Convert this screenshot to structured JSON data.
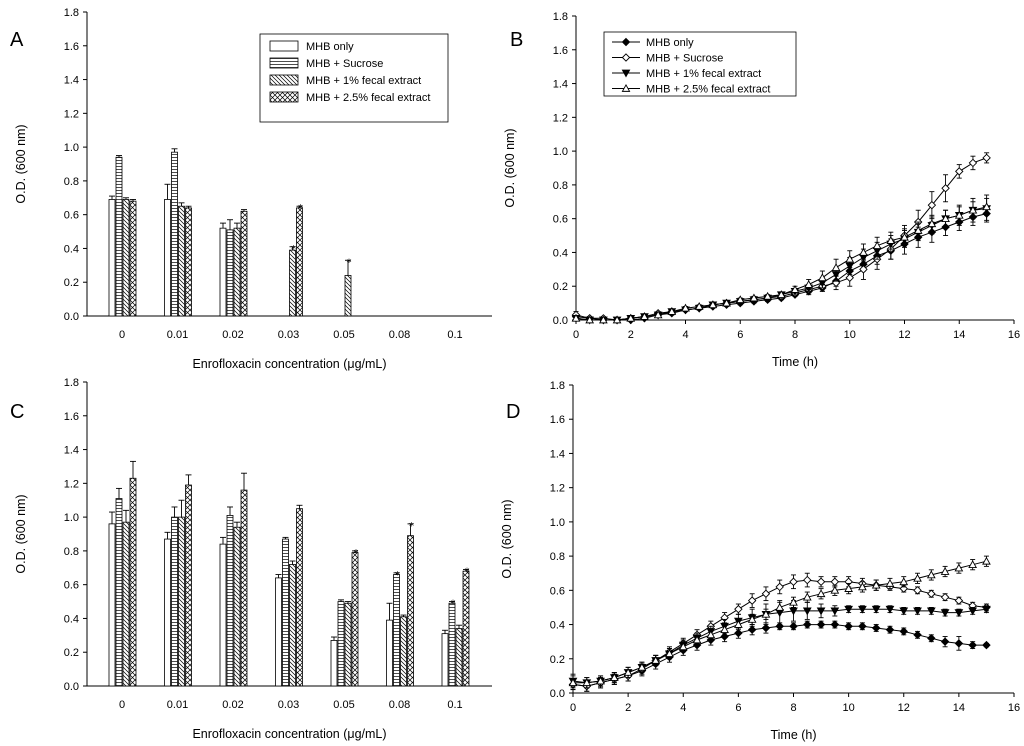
{
  "chart_data": [
    {
      "panel": "A",
      "type": "bar",
      "ylabel": "O.D. (600 nm)",
      "xlabel": "Enrofloxacin concentration (μg/mL)",
      "ylim": [
        0,
        1.8
      ],
      "yticks": [
        "0.0",
        "0.2",
        "0.4",
        "0.6",
        "0.8",
        "1.0",
        "1.2",
        "1.4",
        "1.6",
        "1.8"
      ],
      "categories": [
        "0",
        "0.01",
        "0.02",
        "0.03",
        "0.05",
        "0.08",
        "0.1"
      ],
      "legend_position": "top-right",
      "series": [
        {
          "name": "MHB only",
          "pattern": "open",
          "values": [
            0.69,
            0.69,
            0.52,
            null,
            null,
            null,
            null
          ],
          "errors": [
            0.02,
            0.09,
            0.03,
            null,
            null,
            null,
            null
          ]
        },
        {
          "name": "MHB + Sucrose",
          "pattern": "hlines",
          "values": [
            0.94,
            0.97,
            0.51,
            null,
            null,
            null,
            null
          ],
          "errors": [
            0.01,
            0.02,
            0.06,
            null,
            null,
            null,
            null
          ]
        },
        {
          "name": "MHB + 1% fecal extract",
          "pattern": "diag",
          "values": [
            0.69,
            0.65,
            0.52,
            0.39,
            0.24,
            null,
            null
          ],
          "errors": [
            0.01,
            0.02,
            0.03,
            0.02,
            0.09,
            null,
            null
          ]
        },
        {
          "name": "MHB + 2.5% fecal extract",
          "pattern": "cross",
          "values": [
            0.68,
            0.64,
            0.62,
            0.64,
            null,
            null,
            null
          ],
          "errors": [
            0.01,
            0.01,
            0.01,
            0.01,
            null,
            null,
            null
          ]
        }
      ],
      "annotations": [
        {
          "text": "*",
          "category": "0.03",
          "series": 2
        },
        {
          "text": "*",
          "category": "0.03",
          "series": 3
        },
        {
          "text": "*",
          "category": "0.05",
          "series": 2
        }
      ]
    },
    {
      "panel": "B",
      "type": "line",
      "ylabel": "O.D. (600 nm)",
      "xlabel": "Time (h)",
      "xlim": [
        0,
        16
      ],
      "ylim": [
        0,
        1.8
      ],
      "xticks": [
        "0",
        "2",
        "4",
        "6",
        "8",
        "10",
        "12",
        "14",
        "16"
      ],
      "yticks": [
        "0.0",
        "0.2",
        "0.4",
        "0.6",
        "0.8",
        "1.0",
        "1.2",
        "1.4",
        "1.6",
        "1.8"
      ],
      "legend_position": "top-left",
      "x": [
        0,
        0.5,
        1,
        1.5,
        2,
        2.5,
        3,
        3.5,
        4,
        4.5,
        5,
        5.5,
        6,
        6.5,
        7,
        7.5,
        8,
        8.5,
        9,
        9.5,
        10,
        10.5,
        11,
        11.5,
        12,
        12.5,
        13,
        13.5,
        14,
        14.5,
        15
      ],
      "series": [
        {
          "name": "MHB only",
          "marker": "filled-diamond",
          "values": [
            0.02,
            0.01,
            0.0,
            0.0,
            0.0,
            0.01,
            0.03,
            0.04,
            0.06,
            0.07,
            0.08,
            0.09,
            0.1,
            0.11,
            0.12,
            0.13,
            0.15,
            0.17,
            0.19,
            0.23,
            0.29,
            0.33,
            0.38,
            0.41,
            0.45,
            0.49,
            0.52,
            0.55,
            0.58,
            0.61,
            0.63
          ],
          "errors": [
            0.02,
            0.01,
            0.01,
            0.01,
            0.01,
            0.01,
            0.01,
            0.01,
            0.01,
            0.01,
            0.01,
            0.01,
            0.01,
            0.01,
            0.01,
            0.01,
            0.01,
            0.02,
            0.02,
            0.03,
            0.04,
            0.04,
            0.05,
            0.05,
            0.06,
            0.06,
            0.06,
            0.05,
            0.05,
            0.05,
            0.04
          ]
        },
        {
          "name": "MHB + Sucrose",
          "marker": "open-diamond",
          "values": [
            0.03,
            0.01,
            0.01,
            0.0,
            0.01,
            0.02,
            0.04,
            0.05,
            0.06,
            0.07,
            0.09,
            0.1,
            0.11,
            0.12,
            0.13,
            0.14,
            0.16,
            0.18,
            0.2,
            0.22,
            0.25,
            0.3,
            0.36,
            0.42,
            0.5,
            0.58,
            0.68,
            0.78,
            0.88,
            0.93,
            0.96
          ],
          "errors": [
            0.02,
            0.01,
            0.01,
            0.01,
            0.01,
            0.01,
            0.01,
            0.01,
            0.01,
            0.01,
            0.01,
            0.01,
            0.01,
            0.01,
            0.01,
            0.01,
            0.01,
            0.02,
            0.03,
            0.04,
            0.05,
            0.06,
            0.06,
            0.06,
            0.06,
            0.07,
            0.08,
            0.08,
            0.04,
            0.04,
            0.03
          ]
        },
        {
          "name": "MHB + 1% fecal extract",
          "marker": "filled-triangle-down",
          "values": [
            0.01,
            0.0,
            0.0,
            0.0,
            0.01,
            0.02,
            0.03,
            0.05,
            0.06,
            0.07,
            0.09,
            0.1,
            0.11,
            0.12,
            0.13,
            0.15,
            0.17,
            0.19,
            0.22,
            0.27,
            0.32,
            0.37,
            0.41,
            0.45,
            0.48,
            0.52,
            0.56,
            0.6,
            0.62,
            0.65,
            0.66
          ],
          "errors": [
            0.01,
            0.01,
            0.01,
            0.01,
            0.01,
            0.01,
            0.01,
            0.01,
            0.01,
            0.01,
            0.01,
            0.01,
            0.01,
            0.01,
            0.01,
            0.01,
            0.01,
            0.02,
            0.03,
            0.04,
            0.05,
            0.05,
            0.05,
            0.05,
            0.05,
            0.05,
            0.05,
            0.05,
            0.06,
            0.07,
            0.08
          ]
        },
        {
          "name": "MHB + 2.5% fecal extract",
          "marker": "open-triangle-up",
          "values": [
            0.01,
            0.0,
            0.0,
            0.0,
            0.01,
            0.02,
            0.03,
            0.05,
            0.07,
            0.08,
            0.09,
            0.1,
            0.12,
            0.13,
            0.14,
            0.15,
            0.18,
            0.21,
            0.25,
            0.31,
            0.36,
            0.4,
            0.44,
            0.47,
            0.49,
            0.53,
            0.57,
            0.6,
            0.62,
            0.65,
            0.67
          ],
          "errors": [
            0.01,
            0.01,
            0.01,
            0.01,
            0.01,
            0.01,
            0.01,
            0.01,
            0.01,
            0.01,
            0.01,
            0.01,
            0.01,
            0.01,
            0.01,
            0.01,
            0.02,
            0.03,
            0.04,
            0.05,
            0.05,
            0.05,
            0.05,
            0.05,
            0.05,
            0.05,
            0.05,
            0.05,
            0.05,
            0.05,
            0.05
          ]
        }
      ]
    },
    {
      "panel": "C",
      "type": "bar",
      "ylabel": "O.D. (600 nm)",
      "xlabel": "Enrofloxacin concentration (μg/mL)",
      "ylim": [
        0,
        1.8
      ],
      "yticks": [
        "0.0",
        "0.2",
        "0.4",
        "0.6",
        "0.8",
        "1.0",
        "1.2",
        "1.4",
        "1.6",
        "1.8"
      ],
      "categories": [
        "0",
        "0.01",
        "0.02",
        "0.03",
        "0.05",
        "0.08",
        "0.1"
      ],
      "series": [
        {
          "name": "MHB only",
          "pattern": "open",
          "values": [
            0.96,
            0.87,
            0.84,
            0.64,
            0.27,
            0.39,
            0.31
          ],
          "errors": [
            0.07,
            0.04,
            0.04,
            0.02,
            0.02,
            0.1,
            0.02
          ]
        },
        {
          "name": "MHB + Sucrose",
          "pattern": "hlines",
          "values": [
            1.11,
            1.0,
            1.01,
            0.87,
            0.5,
            0.66,
            0.49
          ],
          "errors": [
            0.06,
            0.06,
            0.05,
            0.01,
            0.01,
            0.01,
            0.01
          ]
        },
        {
          "name": "MHB + 1% fecal extract",
          "pattern": "diag",
          "values": [
            0.97,
            1.0,
            0.94,
            0.72,
            0.49,
            0.41,
            0.34
          ],
          "errors": [
            0.07,
            0.1,
            0.03,
            0.02,
            0.01,
            0.01,
            0.02
          ]
        },
        {
          "name": "MHB + 2.5% fecal extract",
          "pattern": "cross",
          "values": [
            1.23,
            1.19,
            1.16,
            1.05,
            0.79,
            0.89,
            0.68
          ],
          "errors": [
            0.1,
            0.06,
            0.1,
            0.02,
            0.01,
            0.07,
            0.01
          ]
        }
      ],
      "annotations": [
        {
          "text": "*",
          "category": "0.05",
          "series": 3
        },
        {
          "text": "*",
          "category": "0.08",
          "series": 1
        },
        {
          "text": "*",
          "category": "0.08",
          "series": 3
        },
        {
          "text": "*",
          "category": "0.1",
          "series": 1
        },
        {
          "text": "*",
          "category": "0.1",
          "series": 3
        }
      ]
    },
    {
      "panel": "D",
      "type": "line",
      "ylabel": "O.D. (600 nm)",
      "xlabel": "Time (h)",
      "xlim": [
        0,
        16
      ],
      "ylim": [
        0,
        1.8
      ],
      "xticks": [
        "0",
        "2",
        "4",
        "6",
        "8",
        "10",
        "12",
        "14",
        "16"
      ],
      "yticks": [
        "0.0",
        "0.2",
        "0.4",
        "0.6",
        "0.8",
        "1.0",
        "1.2",
        "1.4",
        "1.6",
        "1.8"
      ],
      "x": [
        0,
        0.5,
        1,
        1.5,
        2,
        2.5,
        3,
        3.5,
        4,
        4.5,
        5,
        5.5,
        6,
        6.5,
        7,
        7.5,
        8,
        8.5,
        9,
        9.5,
        10,
        10.5,
        11,
        11.5,
        12,
        12.5,
        13,
        13.5,
        14,
        14.5,
        15
      ],
      "series": [
        {
          "name": "MHB only",
          "marker": "filled-diamond",
          "values": [
            0.05,
            0.04,
            0.06,
            0.08,
            0.1,
            0.13,
            0.17,
            0.21,
            0.25,
            0.28,
            0.31,
            0.33,
            0.35,
            0.37,
            0.38,
            0.39,
            0.39,
            0.4,
            0.4,
            0.4,
            0.39,
            0.39,
            0.38,
            0.37,
            0.36,
            0.34,
            0.32,
            0.3,
            0.29,
            0.28,
            0.28
          ],
          "errors": [
            0.03,
            0.03,
            0.03,
            0.03,
            0.03,
            0.03,
            0.03,
            0.03,
            0.03,
            0.03,
            0.03,
            0.03,
            0.03,
            0.03,
            0.03,
            0.02,
            0.02,
            0.02,
            0.02,
            0.02,
            0.02,
            0.02,
            0.02,
            0.02,
            0.02,
            0.02,
            0.02,
            0.03,
            0.04,
            0.02,
            0.01
          ]
        },
        {
          "name": "MHB + Sucrose",
          "marker": "open-diamond",
          "values": [
            0.05,
            0.04,
            0.06,
            0.08,
            0.1,
            0.14,
            0.19,
            0.24,
            0.29,
            0.34,
            0.39,
            0.44,
            0.49,
            0.54,
            0.58,
            0.62,
            0.65,
            0.66,
            0.65,
            0.65,
            0.65,
            0.64,
            0.63,
            0.62,
            0.61,
            0.6,
            0.58,
            0.56,
            0.54,
            0.51,
            0.5
          ],
          "errors": [
            0.03,
            0.03,
            0.03,
            0.03,
            0.03,
            0.03,
            0.03,
            0.03,
            0.03,
            0.03,
            0.03,
            0.03,
            0.03,
            0.04,
            0.04,
            0.04,
            0.04,
            0.04,
            0.03,
            0.03,
            0.03,
            0.03,
            0.03,
            0.02,
            0.02,
            0.02,
            0.02,
            0.02,
            0.02,
            0.02,
            0.02
          ]
        },
        {
          "name": "MHB + 1% fecal extract",
          "marker": "filled-triangle-down",
          "values": [
            0.07,
            0.06,
            0.07,
            0.09,
            0.12,
            0.15,
            0.19,
            0.23,
            0.28,
            0.32,
            0.36,
            0.39,
            0.42,
            0.44,
            0.46,
            0.47,
            0.48,
            0.48,
            0.48,
            0.48,
            0.49,
            0.49,
            0.49,
            0.49,
            0.48,
            0.48,
            0.48,
            0.47,
            0.47,
            0.48,
            0.49
          ],
          "errors": [
            0.04,
            0.03,
            0.03,
            0.03,
            0.03,
            0.03,
            0.03,
            0.03,
            0.03,
            0.03,
            0.03,
            0.04,
            0.04,
            0.05,
            0.06,
            0.07,
            0.06,
            0.05,
            0.04,
            0.03,
            0.02,
            0.02,
            0.02,
            0.02,
            0.02,
            0.02,
            0.02,
            0.02,
            0.02,
            0.02,
            0.02
          ]
        },
        {
          "name": "MHB + 2.5% fecal extract",
          "marker": "open-triangle-up",
          "values": [
            0.06,
            0.06,
            0.07,
            0.09,
            0.12,
            0.15,
            0.19,
            0.23,
            0.27,
            0.31,
            0.34,
            0.37,
            0.4,
            0.43,
            0.46,
            0.5,
            0.53,
            0.56,
            0.58,
            0.6,
            0.61,
            0.62,
            0.63,
            0.64,
            0.65,
            0.67,
            0.69,
            0.71,
            0.73,
            0.75,
            0.77
          ],
          "errors": [
            0.04,
            0.03,
            0.03,
            0.03,
            0.03,
            0.03,
            0.03,
            0.03,
            0.03,
            0.03,
            0.03,
            0.03,
            0.03,
            0.03,
            0.03,
            0.03,
            0.03,
            0.03,
            0.03,
            0.03,
            0.03,
            0.03,
            0.03,
            0.03,
            0.03,
            0.03,
            0.03,
            0.03,
            0.03,
            0.03,
            0.03
          ]
        }
      ]
    }
  ]
}
